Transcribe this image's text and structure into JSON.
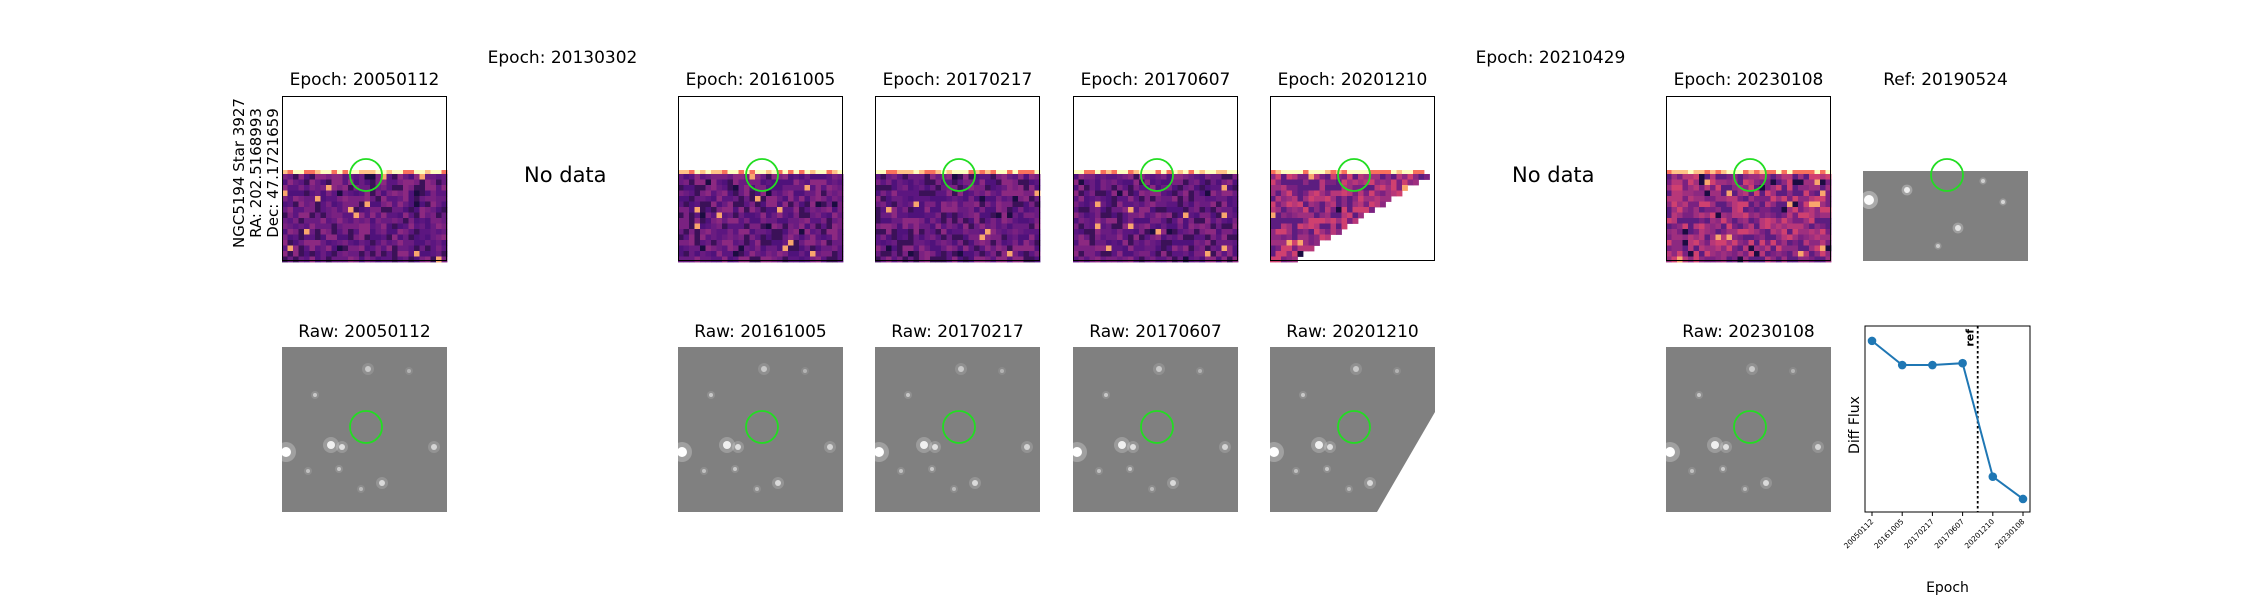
{
  "object": {
    "name": "NGC5194 Star 3927",
    "ra": "RA: 202.5168993",
    "dec": "Dec: 47.1721659"
  },
  "diff_titles": [
    "Epoch: 20050112",
    "Epoch: 20130302",
    "Epoch: 20161005",
    "Epoch: 20170217",
    "Epoch: 20170607",
    "Epoch: 20201210",
    "Epoch: 20210429",
    "Epoch: 20230108"
  ],
  "ref_title": "Ref: 20190524",
  "no_data_text": "No data",
  "raw_titles": [
    "Raw: 20050112",
    "Raw: 20161005",
    "Raw: 20170217",
    "Raw: 20170607",
    "Raw: 20201210",
    "Raw: 20230108"
  ],
  "colors": {
    "circle": "#22dd22",
    "line": "#1f77b4",
    "diff_dark": "#3b1158",
    "diff_mid": "#8c2981",
    "raw_bg": "#808080"
  },
  "chart_data": {
    "type": "line",
    "x": [
      "20050112",
      "20161005",
      "20170217",
      "20170607",
      "20201210",
      "20230108"
    ],
    "y": [
      0.92,
      0.79,
      0.79,
      0.8,
      0.19,
      0.07
    ],
    "ylim": [
      0.0,
      1.0
    ],
    "xlabel": "Epoch",
    "ylabel": "Diff Flux",
    "ref_line_label": "ref",
    "ref_line_between": [
      "20170607",
      "20201210"
    ]
  }
}
